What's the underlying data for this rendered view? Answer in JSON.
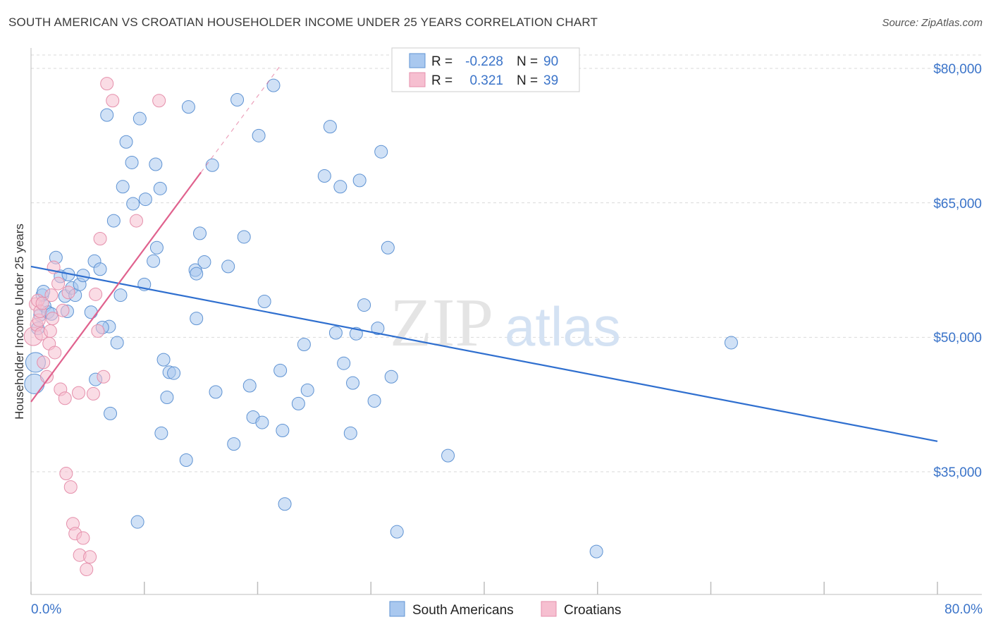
{
  "title": "SOUTH AMERICAN VS CROATIAN HOUSEHOLDER INCOME UNDER 25 YEARS CORRELATION CHART",
  "source": "Source: ZipAtlas.com",
  "colors": {
    "blue_fill": "#a9c8ef",
    "blue_stroke": "#5f93d3",
    "blue_line": "#2f6fcf",
    "pink_fill": "#f6bfd0",
    "pink_stroke": "#e58fab",
    "pink_line": "#e0628e",
    "grid": "#d9d9d9",
    "axis_text": "#3b74c9"
  },
  "legend": {
    "rows": [
      {
        "r_label": "R =",
        "r_value": "-0.228",
        "n_label": "N =",
        "n_value": "90"
      },
      {
        "r_label": "R =",
        "r_value": "0.321",
        "n_label": "N =",
        "n_value": "39"
      }
    ]
  },
  "watermark": {
    "zip": "ZIP",
    "atlas": "atlas"
  },
  "chart_data": {
    "type": "scatter",
    "title": "SOUTH AMERICAN VS CROATIAN HOUSEHOLDER INCOME UNDER 25 YEARS CORRELATION CHART",
    "xlabel": "",
    "ylabel": "Householder Income Under 25 years",
    "xlim": [
      0,
      80
    ],
    "ylim": [
      20000,
      83000
    ],
    "x_tick_labels": [
      "0.0%",
      "80.0%"
    ],
    "y_ticks": [
      35000,
      50000,
      65000,
      80000
    ],
    "y_tick_labels": [
      "$35,000",
      "$50,000",
      "$65,000",
      "$80,000"
    ],
    "grid": true,
    "series": [
      {
        "name": "South Americans",
        "color": "#a9c8ef",
        "trend": {
          "x": [
            0,
            80
          ],
          "y": [
            57900,
            38400
          ]
        },
        "points": [
          [
            0.3,
            44800
          ],
          [
            0.4,
            47200
          ],
          [
            0.6,
            51000
          ],
          [
            0.8,
            52500
          ],
          [
            1.0,
            54700
          ],
          [
            1.2,
            53500
          ],
          [
            1.5,
            52800
          ],
          [
            1.8,
            52600
          ],
          [
            2.2,
            58900
          ],
          [
            2.6,
            56800
          ],
          [
            3.0,
            54600
          ],
          [
            3.3,
            57000
          ],
          [
            3.6,
            55500
          ],
          [
            3.9,
            54700
          ],
          [
            4.3,
            55900
          ],
          [
            4.6,
            56900
          ],
          [
            5.3,
            52800
          ],
          [
            5.6,
            58500
          ],
          [
            5.7,
            45300
          ],
          [
            6.1,
            57600
          ],
          [
            6.7,
            74800
          ],
          [
            6.9,
            51200
          ],
          [
            7.0,
            41500
          ],
          [
            7.3,
            63000
          ],
          [
            7.6,
            49400
          ],
          [
            7.9,
            54700
          ],
          [
            8.1,
            66800
          ],
          [
            8.4,
            71800
          ],
          [
            8.9,
            69500
          ],
          [
            9.0,
            64900
          ],
          [
            9.6,
            74400
          ],
          [
            10.0,
            55900
          ],
          [
            10.1,
            65400
          ],
          [
            10.8,
            58500
          ],
          [
            11.0,
            69300
          ],
          [
            11.1,
            60000
          ],
          [
            11.4,
            66600
          ],
          [
            11.7,
            47500
          ],
          [
            12.0,
            43300
          ],
          [
            12.2,
            46100
          ],
          [
            12.6,
            46000
          ],
          [
            13.7,
            36300
          ],
          [
            13.9,
            75700
          ],
          [
            14.5,
            57500
          ],
          [
            14.6,
            57100
          ],
          [
            14.9,
            61600
          ],
          [
            15.3,
            58400
          ],
          [
            16.0,
            69200
          ],
          [
            16.3,
            43900
          ],
          [
            17.4,
            57900
          ],
          [
            18.2,
            76500
          ],
          [
            18.8,
            61200
          ],
          [
            19.3,
            44600
          ],
          [
            19.6,
            41100
          ],
          [
            20.1,
            72500
          ],
          [
            20.4,
            40500
          ],
          [
            20.6,
            54000
          ],
          [
            21.4,
            78100
          ],
          [
            22.0,
            46300
          ],
          [
            22.2,
            39600
          ],
          [
            22.4,
            31400
          ],
          [
            23.6,
            42600
          ],
          [
            24.1,
            49200
          ],
          [
            24.4,
            44100
          ],
          [
            25.9,
            68000
          ],
          [
            26.4,
            73500
          ],
          [
            26.9,
            50500
          ],
          [
            27.3,
            66800
          ],
          [
            27.6,
            47100
          ],
          [
            28.2,
            39300
          ],
          [
            28.4,
            44900
          ],
          [
            28.7,
            50400
          ],
          [
            29.0,
            67500
          ],
          [
            29.4,
            53600
          ],
          [
            30.3,
            42900
          ],
          [
            30.6,
            51000
          ],
          [
            30.9,
            70700
          ],
          [
            31.5,
            60000
          ],
          [
            31.8,
            45600
          ],
          [
            32.3,
            28300
          ],
          [
            36.8,
            36800
          ],
          [
            49.9,
            26100
          ],
          [
            61.8,
            49400
          ],
          [
            1.1,
            55100
          ],
          [
            3.2,
            52900
          ],
          [
            9.4,
            29400
          ],
          [
            17.9,
            38100
          ],
          [
            14.6,
            52100
          ],
          [
            11.5,
            39300
          ],
          [
            6.3,
            51100
          ]
        ]
      },
      {
        "name": "Croatians",
        "color": "#f6bfd0",
        "trend": {
          "x": [
            0,
            15
          ],
          "y": [
            42800,
            68400
          ]
        },
        "trend_dashed": {
          "x": [
            15,
            22
          ],
          "y": [
            68400,
            80300
          ]
        },
        "points": [
          [
            0.2,
            50100
          ],
          [
            0.4,
            53700
          ],
          [
            0.5,
            51400
          ],
          [
            0.6,
            54100
          ],
          [
            0.7,
            51900
          ],
          [
            0.8,
            52900
          ],
          [
            0.9,
            50400
          ],
          [
            1.0,
            53800
          ],
          [
            1.1,
            47200
          ],
          [
            1.4,
            45600
          ],
          [
            1.6,
            49300
          ],
          [
            1.7,
            50700
          ],
          [
            1.8,
            54700
          ],
          [
            1.9,
            52100
          ],
          [
            2.1,
            48300
          ],
          [
            2.4,
            56000
          ],
          [
            2.6,
            44200
          ],
          [
            2.8,
            53000
          ],
          [
            3.0,
            43200
          ],
          [
            3.1,
            34800
          ],
          [
            3.3,
            55000
          ],
          [
            3.5,
            33300
          ],
          [
            3.7,
            29200
          ],
          [
            3.9,
            28100
          ],
          [
            4.2,
            43800
          ],
          [
            4.3,
            25700
          ],
          [
            4.6,
            27600
          ],
          [
            4.9,
            24100
          ],
          [
            5.2,
            25500
          ],
          [
            5.5,
            43700
          ],
          [
            5.7,
            54800
          ],
          [
            5.9,
            50700
          ],
          [
            6.1,
            61000
          ],
          [
            6.4,
            45600
          ],
          [
            6.7,
            78300
          ],
          [
            7.2,
            76400
          ],
          [
            9.3,
            63000
          ],
          [
            11.3,
            76400
          ],
          [
            2.0,
            57800
          ]
        ]
      }
    ]
  },
  "bottom_legend": [
    "South Americans",
    "Croatians"
  ]
}
